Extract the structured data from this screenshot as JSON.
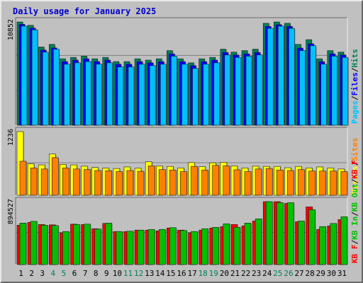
{
  "title": "Daily usage for January 2025",
  "colors": {
    "frame": "#c0c0c0",
    "plot_bg": "#c0c0c0",
    "gridline": "#7f7f7f",
    "hits": "#00805c",
    "files": "#0000ff",
    "pages": "#00c0ff",
    "visits": "#ffff00",
    "sites": "#ff8000",
    "kb_in": "#00c000",
    "kb_out": "#00c000",
    "kb_f": "#ff0000",
    "weekday_label": "#000000",
    "weekend_label": "#00805c"
  },
  "chart_data": [
    {
      "type": "bar",
      "panel": "hits-files-pages",
      "title": "Daily usage for January 2025",
      "categories": [
        "1",
        "2",
        "3",
        "4",
        "5",
        "6",
        "7",
        "8",
        "9",
        "10",
        "11",
        "12",
        "13",
        "14",
        "15",
        "16",
        "17",
        "18",
        "19",
        "20",
        "21",
        "22",
        "23",
        "24",
        "25",
        "26",
        "27",
        "28",
        "29",
        "30",
        "31"
      ],
      "weekend_days": [
        "4",
        "5",
        "11",
        "12",
        "18",
        "19",
        "25",
        "26"
      ],
      "ymax_label": "10852",
      "ylim": [
        0,
        10852
      ],
      "axis_legend": [
        "Pages",
        "/",
        "Files",
        "/",
        "Hits"
      ],
      "series": [
        {
          "name": "Hits",
          "values": [
            10852,
            10496,
            8220,
            8492,
            6980,
            7126,
            7256,
            6980,
            7126,
            6686,
            6686,
            6980,
            6840,
            6980,
            7840,
            6980,
            6554,
            6980,
            7126,
            7990,
            7682,
            7840,
            7990,
            10708,
            10852,
            10708,
            8492,
            8990,
            6980,
            7840,
            7682
          ]
        },
        {
          "name": "Files",
          "values": [
            10600,
            10200,
            7900,
            8120,
            6686,
            6840,
            6980,
            6686,
            6840,
            6412,
            6412,
            6686,
            6554,
            6686,
            7500,
            6686,
            6260,
            6686,
            6840,
            7650,
            7380,
            7500,
            7650,
            10380,
            10566,
            10380,
            8100,
            8560,
            6686,
            7500,
            7380
          ]
        },
        {
          "name": "Pages",
          "values": [
            10410,
            10026,
            7682,
            7990,
            6412,
            6554,
            6686,
            6412,
            6554,
            6120,
            6120,
            6412,
            6260,
            6412,
            7256,
            6412,
            5970,
            6412,
            6554,
            7382,
            7126,
            7256,
            7382,
            10176,
            10410,
            10176,
            7840,
            8364,
            6412,
            7256,
            7126
          ]
        }
      ]
    },
    {
      "type": "bar",
      "panel": "visits-sites",
      "categories": [
        "1",
        "2",
        "3",
        "4",
        "5",
        "6",
        "7",
        "8",
        "9",
        "10",
        "11",
        "12",
        "13",
        "14",
        "15",
        "16",
        "17",
        "18",
        "19",
        "20",
        "21",
        "22",
        "23",
        "24",
        "25",
        "26",
        "27",
        "28",
        "29",
        "30",
        "31"
      ],
      "ymax_label": "1236",
      "ylim": [
        0,
        1236
      ],
      "axis_legend": [
        "Visits",
        "/",
        "Sites"
      ],
      "series": [
        {
          "name": "Visits",
          "values": [
            1236,
            610,
            590,
            800,
            600,
            590,
            565,
            540,
            530,
            520,
            550,
            525,
            650,
            570,
            560,
            530,
            635,
            555,
            630,
            640,
            570,
            530,
            565,
            560,
            560,
            535,
            560,
            530,
            550,
            530,
            510
          ]
        },
        {
          "name": "Sites",
          "values": [
            660,
            530,
            510,
            730,
            530,
            510,
            500,
            480,
            475,
            460,
            480,
            465,
            570,
            500,
            490,
            460,
            560,
            490,
            580,
            570,
            495,
            460,
            510,
            520,
            490,
            480,
            500,
            470,
            470,
            470,
            460
          ]
        }
      ]
    },
    {
      "type": "bar",
      "panel": "kbytes",
      "categories": [
        "1",
        "2",
        "3",
        "4",
        "5",
        "6",
        "7",
        "8",
        "9",
        "10",
        "11",
        "12",
        "13",
        "14",
        "15",
        "16",
        "17",
        "18",
        "19",
        "20",
        "21",
        "22",
        "23",
        "24",
        "25",
        "26",
        "27",
        "28",
        "29",
        "30",
        "31"
      ],
      "ymax_label": "894527",
      "ylim": [
        0,
        894527
      ],
      "axis_legend": [
        "KB F",
        "/",
        "KB In",
        "/",
        "KB Out",
        "/",
        "KB F"
      ],
      "series": [
        {
          "name": "KB F",
          "values": [
            560000,
            600000,
            570000,
            565000,
            450000,
            575000,
            570000,
            510000,
            585000,
            470000,
            470000,
            490000,
            490000,
            480000,
            520000,
            490000,
            450000,
            490000,
            520000,
            540000,
            570000,
            550000,
            620000,
            894527,
            894527,
            870000,
            610000,
            820000,
            500000,
            550000,
            640000
          ]
        },
        {
          "name": "KB In",
          "values": [
            590000,
            615000,
            560000,
            555000,
            470000,
            570000,
            575000,
            505000,
            590000,
            470000,
            475000,
            490000,
            500000,
            500000,
            525000,
            485000,
            470000,
            510000,
            530000,
            580000,
            530000,
            590000,
            650000,
            894527,
            880000,
            880000,
            620000,
            780000,
            540000,
            585000,
            680000
          ]
        }
      ]
    }
  ]
}
